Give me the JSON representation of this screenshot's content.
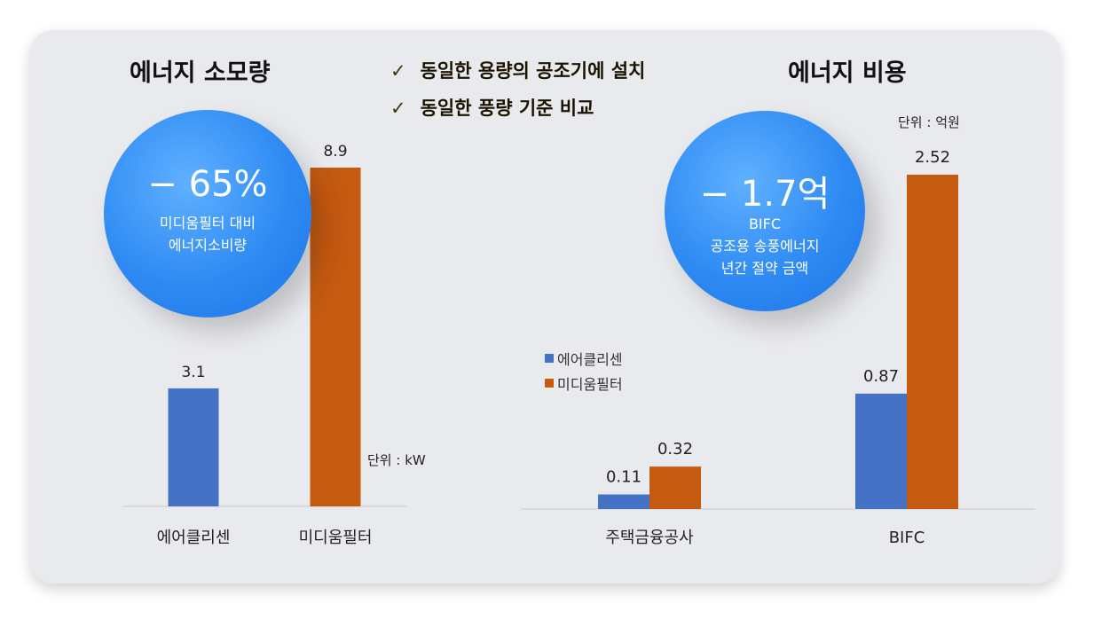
{
  "left": {
    "title": "에너지 소모량",
    "circle": {
      "big": "− 65%",
      "line1": "미디움필터 대비",
      "line2": "에너지소비량"
    },
    "unit": "단위 : kW"
  },
  "center": {
    "check": "✓",
    "line1": "동일한 용량의 공조기에 설치",
    "line2": "동일한 풍량 기준 비교"
  },
  "right": {
    "title": "에너지 비용",
    "unit": "단위 : 억원",
    "circle": {
      "big": "− 1.7억",
      "line1": "BIFC",
      "line2": "공조용 송풍에너지",
      "line3": "년간 절약 금액"
    }
  },
  "colors": {
    "blue": "#4472c4",
    "orange": "#c55a11",
    "panel": "#e9eaee",
    "circle": "#2f8bf3"
  },
  "chart_data": [
    {
      "type": "bar",
      "title": "에너지 소모량",
      "categories": [
        "에어클리센",
        "미디움필터"
      ],
      "values": [
        3.1,
        8.9
      ],
      "labels": [
        "3.1",
        "8.9"
      ],
      "colors": [
        "#4472c4",
        "#c55a11"
      ],
      "ylabel": "단위 : kW",
      "ylim": [
        0,
        10
      ]
    },
    {
      "type": "bar",
      "title": "에너지 비용",
      "categories": [
        "주택금융공사",
        "BIFC"
      ],
      "series": [
        {
          "name": "에어클리센",
          "values": [
            0.11,
            0.87
          ],
          "labels": [
            "0.11",
            "0.87"
          ],
          "color": "#4472c4"
        },
        {
          "name": "미디움필터",
          "values": [
            0.32,
            2.52
          ],
          "labels": [
            "0.32",
            "2.52"
          ],
          "color": "#c55a11"
        }
      ],
      "ylabel": "단위 : 억원",
      "ylim": [
        0,
        2.8
      ],
      "legend": "left"
    }
  ]
}
